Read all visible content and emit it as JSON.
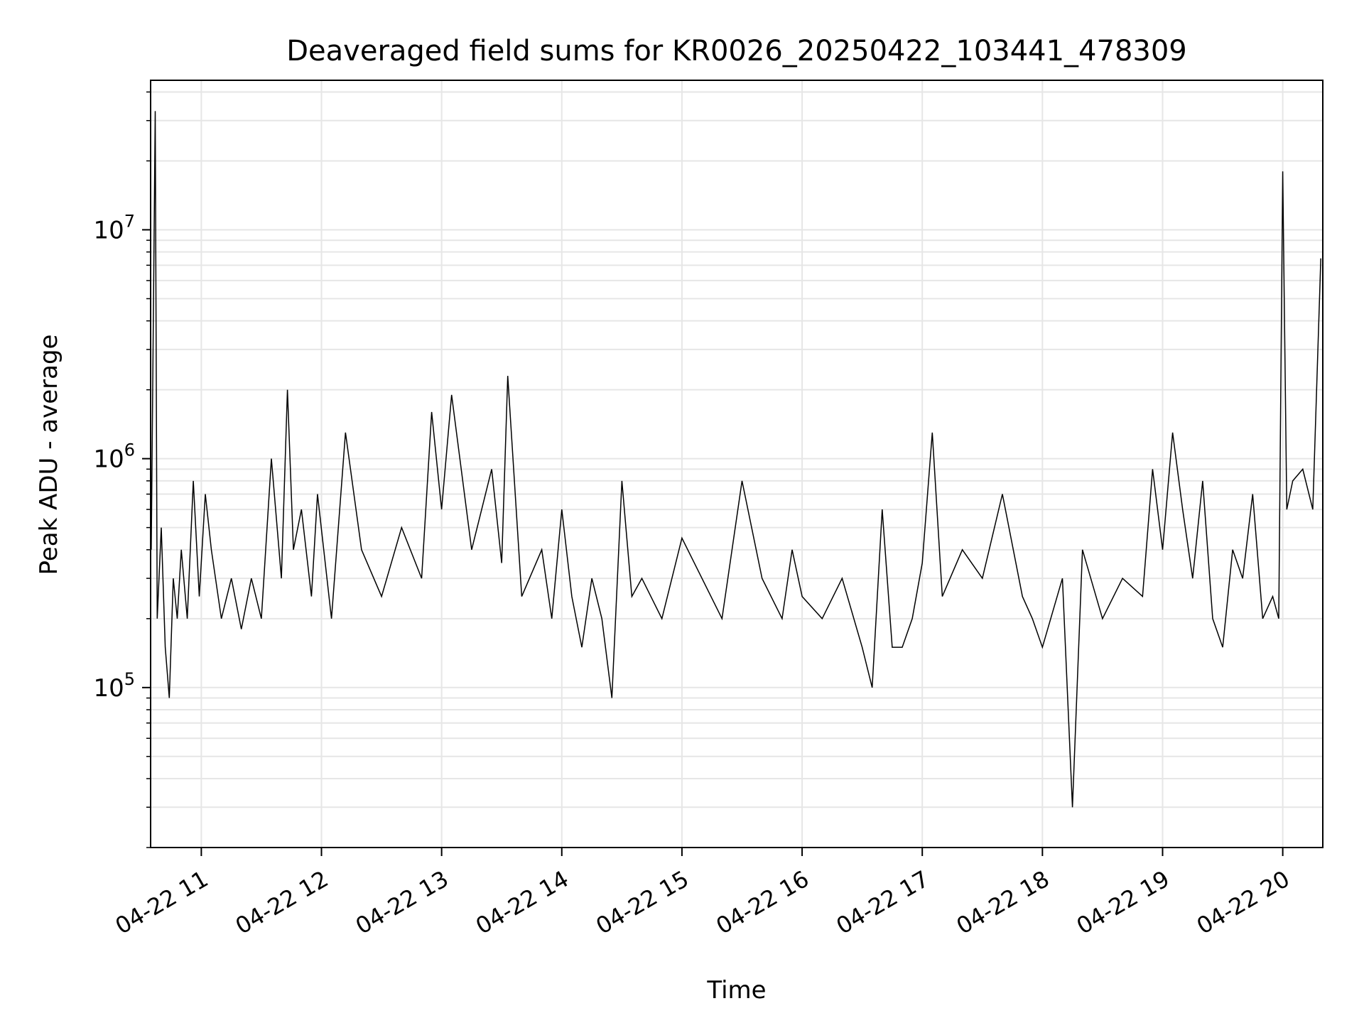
{
  "chart_data": {
    "type": "line",
    "title": "Deaveraged field sums for KR0026_20250422_103441_478309",
    "xlabel": "Time",
    "ylabel": "Peak ADU - average",
    "yscale": "log",
    "ylim": [
      20000,
      45000000
    ],
    "xlim": [
      "2025-04-22T10:34:41",
      "2025-04-22T20:20:00"
    ],
    "x_ticks": [
      {
        "t": "2025-04-22T11:00",
        "label": "04-22 11"
      },
      {
        "t": "2025-04-22T12:00",
        "label": "04-22 12"
      },
      {
        "t": "2025-04-22T13:00",
        "label": "04-22 13"
      },
      {
        "t": "2025-04-22T14:00",
        "label": "04-22 14"
      },
      {
        "t": "2025-04-22T15:00",
        "label": "04-22 15"
      },
      {
        "t": "2025-04-22T16:00",
        "label": "04-22 16"
      },
      {
        "t": "2025-04-22T17:00",
        "label": "04-22 17"
      },
      {
        "t": "2025-04-22T18:00",
        "label": "04-22 18"
      },
      {
        "t": "2025-04-22T19:00",
        "label": "04-22 19"
      },
      {
        "t": "2025-04-22T20:00",
        "label": "04-22 20"
      }
    ],
    "y_ticks": [
      {
        "v": 100000,
        "label": "10^5"
      },
      {
        "v": 1000000,
        "label": "10^6"
      },
      {
        "v": 10000000,
        "label": "10^7"
      }
    ],
    "grid": true,
    "line_color": "#000000",
    "grid_color": "#e6e6e6",
    "series": [
      {
        "x": [
          "10:35",
          "10:37",
          "10:38",
          "10:40",
          "10:42",
          "10:44",
          "10:46",
          "10:48",
          "10:50",
          "10:53",
          "10:56",
          "10:59",
          "11:02",
          "11:05",
          "11:10",
          "11:15",
          "11:20",
          "11:25",
          "11:30",
          "11:35",
          "11:40",
          "11:43",
          "11:46",
          "11:50",
          "11:55",
          "11:58",
          "12:05",
          "12:12",
          "12:20",
          "12:30",
          "12:40",
          "12:50",
          "12:55",
          "13:00",
          "13:05",
          "13:15",
          "13:25",
          "13:30",
          "13:33",
          "13:40",
          "13:50",
          "13:55",
          "14:00",
          "14:05",
          "14:10",
          "14:15",
          "14:20",
          "14:25",
          "14:30",
          "14:35",
          "14:40",
          "14:50",
          "15:00",
          "15:10",
          "15:20",
          "15:30",
          "15:40",
          "15:50",
          "15:55",
          "16:00",
          "16:10",
          "16:20",
          "16:30",
          "16:35",
          "16:40",
          "16:45",
          "16:50",
          "16:55",
          "17:00",
          "17:05",
          "17:10",
          "17:20",
          "17:30",
          "17:40",
          "17:50",
          "17:55",
          "18:00",
          "18:10",
          "18:15",
          "18:20",
          "18:30",
          "18:40",
          "18:50",
          "18:55",
          "19:00",
          "19:05",
          "19:10",
          "19:15",
          "19:20",
          "19:25",
          "19:30",
          "19:35",
          "19:40",
          "19:45",
          "19:50",
          "19:55",
          "19:58",
          "20:00",
          "20:02",
          "20:05",
          "20:10",
          "20:15",
          "20:19"
        ],
        "y": [
          400000,
          33000000,
          200000,
          500000,
          150000,
          90000,
          300000,
          200000,
          400000,
          200000,
          800000,
          250000,
          700000,
          400000,
          200000,
          300000,
          180000,
          300000,
          200000,
          1000000,
          300000,
          2000000,
          400000,
          600000,
          250000,
          700000,
          200000,
          1300000,
          400000,
          250000,
          500000,
          300000,
          1600000,
          600000,
          1900000,
          400000,
          900000,
          350000,
          2300000,
          250000,
          400000,
          200000,
          600000,
          250000,
          150000,
          300000,
          200000,
          90000,
          800000,
          250000,
          300000,
          200000,
          450000,
          300000,
          200000,
          800000,
          300000,
          200000,
          400000,
          250000,
          200000,
          300000,
          150000,
          100000,
          600000,
          150000,
          150000,
          200000,
          350000,
          1300000,
          250000,
          400000,
          300000,
          700000,
          250000,
          200000,
          150000,
          300000,
          30000,
          400000,
          200000,
          300000,
          250000,
          900000,
          400000,
          1300000,
          600000,
          300000,
          800000,
          200000,
          150000,
          400000,
          300000,
          700000,
          200000,
          250000,
          200000,
          18000000,
          600000,
          800000,
          900000,
          600000,
          7500000
        ]
      }
    ]
  }
}
